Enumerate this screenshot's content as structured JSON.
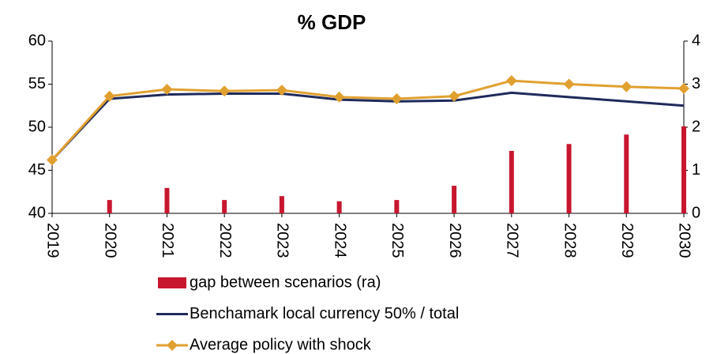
{
  "chart_data": {
    "type": "bar-line",
    "title": "% GDP",
    "categories": [
      "2019",
      "2020",
      "2021",
      "2022",
      "2023",
      "2024",
      "2025",
      "2026",
      "2027",
      "2028",
      "2029",
      "2030"
    ],
    "ylim": [
      40,
      60
    ],
    "yticks": [
      40,
      45,
      50,
      55,
      60
    ],
    "y2lim": [
      0,
      4
    ],
    "y2ticks": [
      0,
      1,
      2,
      3,
      4
    ],
    "series": [
      {
        "name": "gap between scenarios (ra)",
        "type": "bar",
        "axis": "y2",
        "color": "#c8162f",
        "values": [
          null,
          0.31,
          0.59,
          0.31,
          0.4,
          0.28,
          0.31,
          0.64,
          1.45,
          1.61,
          1.83,
          2.02
        ]
      },
      {
        "name": "Benchamark local currency 50% / total",
        "type": "line",
        "color": "#1f2a5c",
        "values": [
          46.2,
          53.3,
          53.8,
          53.9,
          53.9,
          53.2,
          53.0,
          53.1,
          54.0,
          53.5,
          53.0,
          52.5
        ]
      },
      {
        "name": "Average policy with shock",
        "type": "line",
        "marker": "diamond",
        "color": "#e0a030",
        "values": [
          46.2,
          53.6,
          54.4,
          54.2,
          54.3,
          53.5,
          53.3,
          53.6,
          55.4,
          55.0,
          54.7,
          54.5
        ]
      }
    ]
  }
}
